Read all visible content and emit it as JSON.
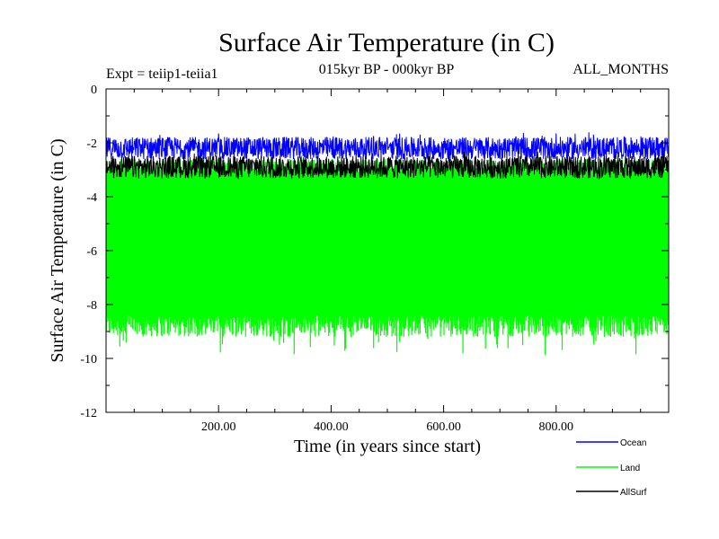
{
  "chart_data": {
    "type": "line",
    "title": "Surface Air Temperature (in C)",
    "subtitle": "015kyr BP - 000kyr BP",
    "left_note": "Expt = teiip1-teiia1",
    "right_note": "ALL_MONTHS",
    "xlabel": "Time (in years since start)",
    "ylabel": "Surface Air Temperature (in C)",
    "xlim": [
      0,
      1000
    ],
    "ylim": [
      -12,
      0
    ],
    "x_ticks": [
      200,
      400,
      600,
      800
    ],
    "x_tick_labels": [
      "200.00",
      "400.00",
      "600.00",
      "800.00"
    ],
    "y_ticks": [
      0,
      -2,
      -4,
      -6,
      -8,
      -10,
      -12
    ],
    "y_tick_labels": [
      "0",
      "-2",
      "-4",
      "-6",
      "-8",
      "-10",
      "-12"
    ],
    "grid": false,
    "legend_position": "bottom-right",
    "series": [
      {
        "name": "Ocean",
        "color": "#0000ff",
        "mean": -2.2,
        "range": [
          -2.6,
          -1.4
        ]
      },
      {
        "name": "Land",
        "color": "#00ff00",
        "mean": -6.0,
        "range": [
          -10.1,
          -2.6
        ]
      },
      {
        "name": "AllSurf",
        "color": "#000000",
        "mean": -2.9,
        "range": [
          -3.5,
          -2.3
        ]
      }
    ]
  }
}
